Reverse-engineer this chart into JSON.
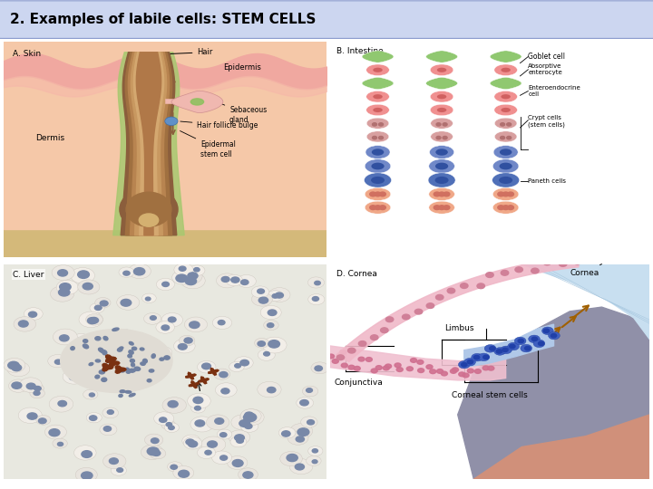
{
  "title": "2. Examples of labile cells: STEM CELLS",
  "title_fontsize": 11,
  "title_bg_color": "#ccd6f0",
  "title_text_color": "#000000",
  "panel_labels": [
    "A. Skin",
    "B. Intestine",
    "C. Liver",
    "D. Cornea"
  ],
  "panel_border_color": "#888888",
  "background_color": "#ffffff",
  "fig_width": 7.2,
  "fig_height": 5.4,
  "dpi": 100
}
